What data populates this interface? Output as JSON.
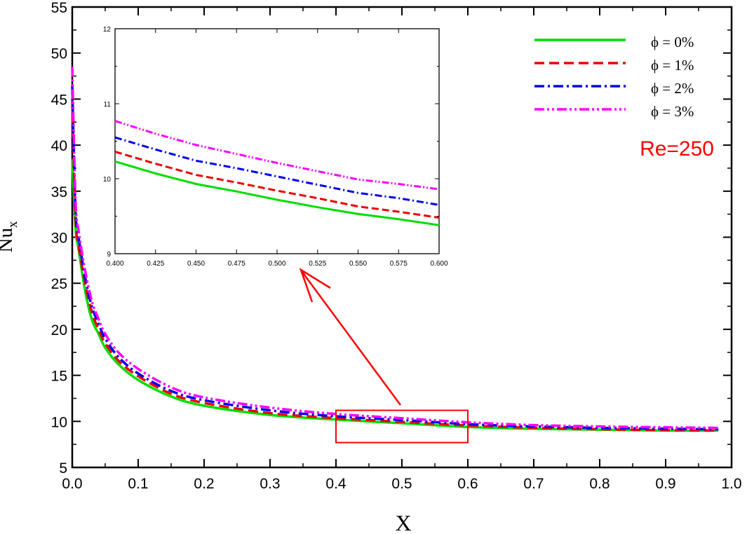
{
  "chart_data": [
    {
      "type": "line",
      "xlabel": "X",
      "ylabel": "Nu",
      "ylabel_sub": "x",
      "xlim": [
        0.0,
        1.0
      ],
      "ylim": [
        5,
        55
      ],
      "x_ticks": [
        "0.0",
        "0.1",
        "0.2",
        "0.3",
        "0.4",
        "0.5",
        "0.6",
        "0.7",
        "0.8",
        "0.9",
        "1.0"
      ],
      "y_ticks": [
        "5",
        "10",
        "15",
        "20",
        "25",
        "30",
        "35",
        "40",
        "45",
        "50",
        "55"
      ],
      "grid": false,
      "legend_position": "top-right",
      "annotation": "Re=250",
      "annotation_color": "#ff0000",
      "x": [
        0.0,
        0.005,
        0.01,
        0.02,
        0.03,
        0.04,
        0.05,
        0.07,
        0.1,
        0.15,
        0.2,
        0.3,
        0.4,
        0.5,
        0.6,
        0.7,
        0.8,
        0.9,
        0.98
      ],
      "series": [
        {
          "name": "ϕ = 0%",
          "color": "#00dd00",
          "dash": "solid",
          "values": [
            38.5,
            31.0,
            28.5,
            24.0,
            21.0,
            19.5,
            18.0,
            16.2,
            14.5,
            12.7,
            11.7,
            10.7,
            10.2,
            9.8,
            9.4,
            9.2,
            9.1,
            9.0,
            9.0
          ]
        },
        {
          "name": "ϕ = 1%",
          "color": "#ee0000",
          "dash": "dash",
          "values": [
            45.0,
            32.0,
            29.0,
            24.8,
            21.8,
            20.0,
            18.5,
            16.6,
            14.9,
            13.0,
            12.0,
            10.9,
            10.35,
            9.95,
            9.55,
            9.3,
            9.15,
            9.05,
            9.0
          ]
        },
        {
          "name": "ϕ = 2%",
          "color": "#0000ee",
          "dash": "dashdot",
          "values": [
            46.5,
            33.0,
            29.8,
            25.5,
            22.4,
            20.6,
            19.0,
            17.0,
            15.2,
            13.3,
            12.3,
            11.2,
            10.55,
            10.15,
            9.7,
            9.45,
            9.3,
            9.2,
            9.15
          ]
        },
        {
          "name": "ϕ = 3%",
          "color": "#ff00ff",
          "dash": "dashdotdot",
          "values": [
            48.5,
            34.0,
            30.5,
            26.2,
            23.0,
            21.1,
            19.5,
            17.5,
            15.7,
            13.7,
            12.6,
            11.5,
            10.8,
            10.35,
            9.9,
            9.6,
            9.45,
            9.35,
            9.3
          ]
        }
      ],
      "zoom_box": {
        "xlim": [
          0.4,
          0.6
        ],
        "ylim": [
          7.7,
          11.2
        ],
        "color": "#ff0000"
      }
    },
    {
      "type": "line",
      "xlim": [
        0.4,
        0.6
      ],
      "ylim": [
        9,
        12
      ],
      "x_ticks": [
        "0.400",
        "0.425",
        "0.450",
        "0.475",
        "0.500",
        "0.525",
        "0.550",
        "0.575",
        "0.600"
      ],
      "y_ticks": [
        "9",
        "10",
        "11",
        "12"
      ],
      "x": [
        0.4,
        0.425,
        0.45,
        0.475,
        0.5,
        0.525,
        0.55,
        0.575,
        0.6
      ],
      "series": [
        {
          "name": "ϕ = 0%",
          "values": [
            10.23,
            10.07,
            9.93,
            9.83,
            9.72,
            9.62,
            9.53,
            9.46,
            9.38
          ]
        },
        {
          "name": "ϕ = 1%",
          "values": [
            10.36,
            10.2,
            10.05,
            9.95,
            9.84,
            9.74,
            9.63,
            9.56,
            9.48
          ]
        },
        {
          "name": "ϕ = 2%",
          "values": [
            10.55,
            10.39,
            10.24,
            10.14,
            10.03,
            9.92,
            9.81,
            9.74,
            9.65
          ]
        },
        {
          "name": "ϕ = 3%",
          "values": [
            10.77,
            10.6,
            10.45,
            10.33,
            10.21,
            10.1,
            9.99,
            9.93,
            9.86
          ]
        }
      ]
    }
  ]
}
